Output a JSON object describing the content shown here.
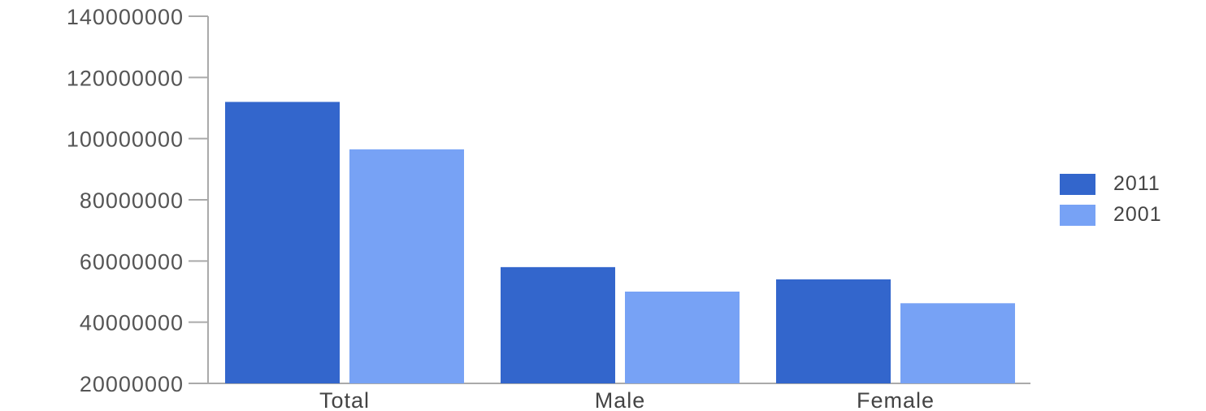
{
  "chart_data": {
    "type": "bar",
    "categories": [
      "Total",
      "Male",
      "Female"
    ],
    "series": [
      {
        "name": "2011",
        "values": [
          112000000,
          58000000,
          54000000
        ],
        "color": "#3366cc"
      },
      {
        "name": "2001",
        "values": [
          96500000,
          50000000,
          46200000
        ],
        "color": "#77a2f5"
      }
    ],
    "yticks": [
      "140000000",
      "120000000",
      "100000000",
      "80000000",
      "60000000",
      "40000000",
      "20000000"
    ],
    "ylim": [
      20000000,
      140000000
    ],
    "legend_position": "right",
    "grid": false
  }
}
